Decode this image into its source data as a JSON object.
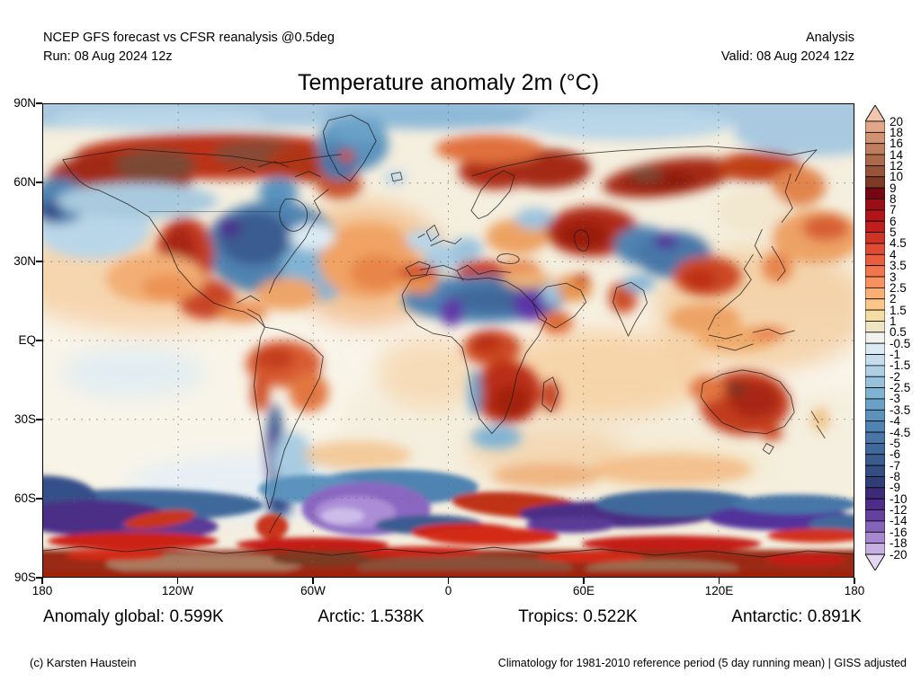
{
  "header": {
    "left_line1": "NCEP GFS forecast vs CFSR reanalysis @0.5deg",
    "left_line2": "Run: 08 Aug 2024 12z",
    "right_line1": "Analysis",
    "right_line2": "Valid: 08 Aug 2024 12z"
  },
  "title": "Temperature anomaly 2m (°C)",
  "axes": {
    "lat": [
      "90N",
      "60N",
      "30N",
      "EQ",
      "30S",
      "60S",
      "90S"
    ],
    "lon": [
      "180",
      "120W",
      "60W",
      "0",
      "60E",
      "120E",
      "180"
    ]
  },
  "colorbar": {
    "unit": "°C",
    "over_color": "#f4c5ae",
    "under_color": "#e3d7f3",
    "labels": [
      "20",
      "18",
      "16",
      "14",
      "12",
      "10",
      "9",
      "8",
      "7",
      "6",
      "5",
      "4.5",
      "4",
      "3.5",
      "3",
      "2.5",
      "2",
      "1.5",
      "1",
      "0.5",
      "-0.5",
      "-1",
      "-1.5",
      "-2",
      "-2.5",
      "-3",
      "-3.5",
      "-4",
      "-4.5",
      "-5",
      "-6",
      "-7",
      "-8",
      "-9",
      "-10",
      "-12",
      "-14",
      "-16",
      "-18",
      "-20"
    ],
    "cell_colors": [
      "#e2a689",
      "#d19272",
      "#bf7e5e",
      "#ad6a4b",
      "#985439",
      "#7f3a26",
      "#780612",
      "#9c0e15",
      "#b11419",
      "#c01d1d",
      "#cf3326",
      "#e04b33",
      "#e95f3d",
      "#f0764d",
      "#f69260",
      "#fbae74",
      "#fcc689",
      "#f4dca2",
      "#eee6c3",
      "#f2f1ee",
      "#dcebf3",
      "#c6ddec",
      "#aed0e4",
      "#96c2dc",
      "#80b2d2",
      "#6aa2c7",
      "#5b92bc",
      "#5083b1",
      "#4776a7",
      "#40699b",
      "#3a5b8e",
      "#344d82",
      "#2f3f76",
      "#3d2b79",
      "#4f2c8a",
      "#66409f",
      "#8563bb",
      "#a687d0",
      "#c7afe3"
    ]
  },
  "stats": {
    "items": [
      "Anomaly global: 0.599K",
      "Arctic: 1.538K",
      "Tropics: 0.522K",
      "Antarctic: 0.891K"
    ]
  },
  "footer": {
    "left": "(c) Karsten Haustein",
    "right": "Climatology for 1981-2010 reference period (5 day running mean) | GISS adjusted"
  },
  "chart_data": {
    "type": "heatmap",
    "title": "Temperature anomaly 2m (°C)",
    "units": "°C",
    "projection": "equirectangular",
    "lat_range": [
      -90,
      90
    ],
    "lon_range": [
      -180,
      180
    ],
    "scale_boundaries": [
      20,
      18,
      16,
      14,
      12,
      10,
      9,
      8,
      7,
      6,
      5,
      4.5,
      4,
      3.5,
      3,
      2.5,
      2,
      1.5,
      1,
      0.5,
      -0.5,
      -1,
      -1.5,
      -2,
      -2.5,
      -3,
      -3.5,
      -4,
      -4.5,
      -5,
      -6,
      -7,
      -8,
      -9,
      -10,
      -12,
      -14,
      -16,
      -18,
      -20
    ],
    "summary_stats": {
      "anomaly_global_K": 0.599,
      "arctic_K": 1.538,
      "tropics_K": 0.522,
      "antarctic_K": 0.891
    }
  }
}
